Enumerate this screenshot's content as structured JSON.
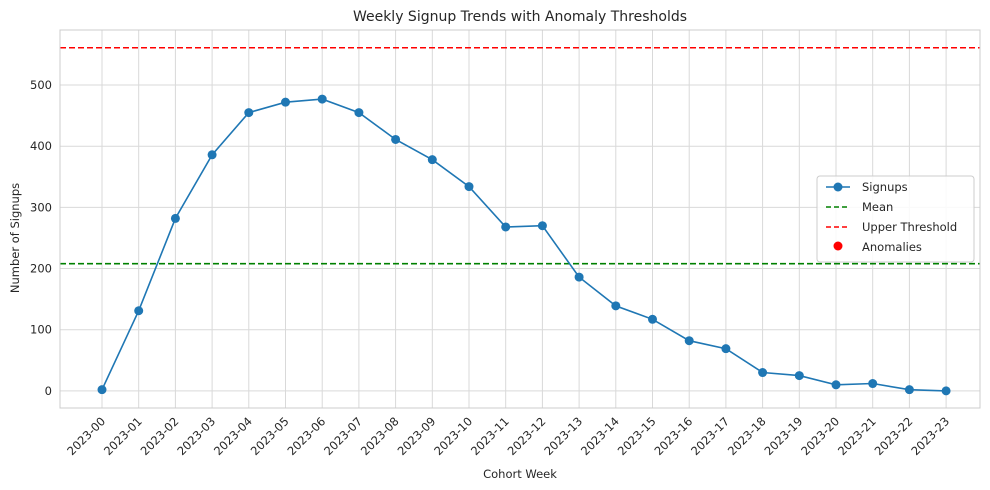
{
  "chart_data": {
    "type": "line",
    "title": "Weekly Signup Trends with Anomaly Thresholds",
    "xlabel": "Cohort Week",
    "ylabel": "Number of Signups",
    "categories": [
      "2023-00",
      "2023-01",
      "2023-02",
      "2023-03",
      "2023-04",
      "2023-05",
      "2023-06",
      "2023-07",
      "2023-08",
      "2023-09",
      "2023-10",
      "2023-11",
      "2023-12",
      "2023-13",
      "2023-14",
      "2023-15",
      "2023-16",
      "2023-17",
      "2023-18",
      "2023-19",
      "2023-20",
      "2023-21",
      "2023-22",
      "2023-23"
    ],
    "ylim": [
      -28,
      590
    ],
    "yticks": [
      0,
      100,
      200,
      300,
      400,
      500
    ],
    "grid": true,
    "legend_position": "center-right",
    "series": [
      {
        "name": "Signups",
        "color": "#1f77b4",
        "marker": "circle",
        "values": [
          2,
          131,
          282,
          386,
          455,
          472,
          477,
          455,
          411,
          378,
          334,
          268,
          270,
          186,
          139,
          117,
          82,
          69,
          30,
          25,
          10,
          12,
          2,
          0
        ]
      }
    ],
    "reference_lines": [
      {
        "name": "Mean",
        "value": 208,
        "color": "#008000",
        "style": "dashed"
      },
      {
        "name": "Upper Threshold",
        "value": 561,
        "color": "#ff0000",
        "style": "dashed"
      }
    ],
    "anomalies": {
      "name": "Anomalies",
      "color": "#ff0000",
      "points": []
    }
  }
}
